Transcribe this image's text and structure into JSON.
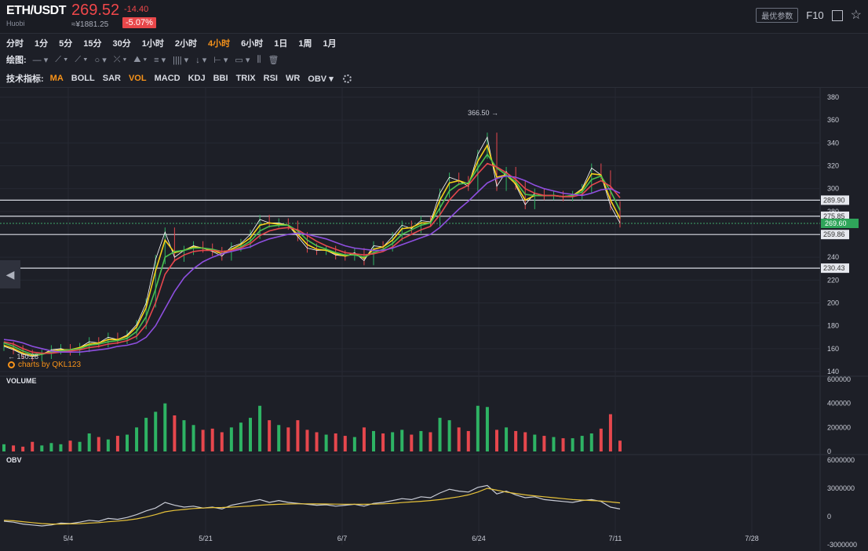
{
  "header": {
    "pair": "ETH/USDT",
    "exchange": "Huobi",
    "price": "269.52",
    "change": "-14.40",
    "cny": "≈¥1881.25",
    "change_pct": "-5.07%",
    "best_params": "最优参数",
    "f10": "F10",
    "colors": {
      "down": "#f0474a",
      "accent": "#f7931a"
    }
  },
  "timeframes": [
    "分时",
    "1分",
    "5分",
    "15分",
    "30分",
    "1小时",
    "2小时",
    "4小时",
    "6小时",
    "1日",
    "1周",
    "1月"
  ],
  "active_timeframe": "4小时",
  "drawing": {
    "label": "绘图:",
    "tools": [
      "— ▾",
      "⟋ ▾",
      "⟋ ▾",
      "○ ▾",
      "⤫ ▾",
      "⛰ ▾",
      "≡ ▾",
      "|||| ▾",
      "↓ ▾",
      "⊢ ▾",
      "▭ ▾",
      "⫼",
      "🗑"
    ]
  },
  "indicators": {
    "label": "技术指标:",
    "items": [
      "MA",
      "BOLL",
      "SAR",
      "VOL",
      "MACD",
      "KDJ",
      "BBI",
      "TRIX",
      "RSI",
      "WR",
      "OBV ▾"
    ],
    "active": [
      "MA",
      "VOL"
    ]
  },
  "watermark": "charts by QKL123",
  "chart_data": [
    {
      "type": "line",
      "title": "",
      "x_ticks": [
        "5/4",
        "5/21",
        "6/7",
        "6/24",
        "7/11",
        "7/28"
      ],
      "y_ticks": [
        "140",
        "160",
        "180",
        "200",
        "220",
        "240",
        "260",
        "280",
        "300",
        "320",
        "340",
        "360",
        "380"
      ],
      "ylim": [
        140,
        380
      ],
      "annotations": {
        "max": "366.50 →",
        "min": "← 150.28"
      },
      "horizontal_levels": [
        {
          "value": 289.9,
          "label": "289.90"
        },
        {
          "value": 275.85,
          "label": "275.85"
        },
        {
          "value": 259.86,
          "label": "259.86"
        },
        {
          "value": 230.43,
          "label": "230.43"
        }
      ],
      "last_price": {
        "value": 269.6,
        "label": "269.60"
      },
      "series": [
        {
          "color": "#ffffff",
          "values": [
            162,
            159,
            155,
            153,
            155,
            159,
            160,
            158,
            161,
            166,
            165,
            170,
            168,
            172,
            181,
            200,
            238,
            262,
            240,
            246,
            250,
            248,
            245,
            241,
            249,
            252,
            260,
            273,
            270,
            270,
            268,
            258,
            248,
            246,
            246,
            242,
            241,
            244,
            237,
            250,
            249,
            258,
            268,
            265,
            272,
            271,
            296,
            310,
            307,
            302,
            330,
            345,
            302,
            315,
            303,
            286,
            296,
            294,
            294,
            293,
            294,
            300,
            318,
            312,
            285,
            270
          ]
        },
        {
          "color": "#f7d21a",
          "values": [
            163,
            160,
            156,
            154,
            155,
            158,
            159,
            159,
            161,
            164,
            165,
            168,
            168,
            171,
            179,
            196,
            228,
            255,
            244,
            246,
            249,
            248,
            246,
            243,
            247,
            251,
            257,
            268,
            270,
            269,
            268,
            260,
            251,
            247,
            246,
            243,
            241,
            243,
            239,
            247,
            249,
            255,
            265,
            266,
            270,
            270,
            290,
            305,
            307,
            304,
            324,
            338,
            310,
            312,
            304,
            290,
            294,
            294,
            294,
            293,
            294,
            299,
            313,
            312,
            290,
            274
          ]
        },
        {
          "color": "#4bc24f",
          "values": [
            165,
            162,
            158,
            155,
            155,
            157,
            158,
            159,
            160,
            163,
            164,
            166,
            167,
            169,
            175,
            188,
            212,
            240,
            245,
            246,
            248,
            248,
            247,
            245,
            246,
            249,
            254,
            263,
            267,
            268,
            268,
            263,
            255,
            250,
            247,
            244,
            242,
            242,
            240,
            244,
            247,
            252,
            260,
            264,
            268,
            270,
            283,
            298,
            304,
            305,
            318,
            330,
            318,
            312,
            306,
            295,
            294,
            294,
            294,
            293,
            294,
            297,
            308,
            311,
            298,
            281
          ]
        },
        {
          "color": "#e6474d",
          "values": [
            166,
            164,
            160,
            157,
            156,
            156,
            157,
            158,
            159,
            161,
            162,
            164,
            165,
            167,
            171,
            181,
            200,
            225,
            237,
            242,
            245,
            246,
            246,
            245,
            246,
            248,
            252,
            259,
            263,
            265,
            266,
            264,
            259,
            254,
            250,
            247,
            244,
            243,
            242,
            243,
            245,
            249,
            256,
            260,
            264,
            267,
            277,
            290,
            299,
            303,
            313,
            322,
            319,
            314,
            308,
            300,
            296,
            294,
            294,
            293,
            293,
            295,
            303,
            307,
            302,
            292
          ]
        },
        {
          "color": "#8e4fe0",
          "values": [
            168,
            167,
            165,
            162,
            160,
            158,
            157,
            157,
            157,
            158,
            159,
            160,
            162,
            163,
            165,
            170,
            180,
            195,
            210,
            222,
            230,
            236,
            240,
            243,
            245,
            247,
            249,
            253,
            256,
            258,
            260,
            261,
            260,
            258,
            256,
            253,
            250,
            248,
            247,
            246,
            246,
            248,
            251,
            254,
            257,
            260,
            266,
            274,
            282,
            289,
            297,
            305,
            309,
            311,
            310,
            307,
            303,
            300,
            298,
            296,
            295,
            294,
            296,
            299,
            300,
            296
          ]
        }
      ]
    },
    {
      "type": "bar",
      "title": "VOLUME",
      "y_ticks": [
        "0",
        "200000",
        "400000",
        "600000"
      ],
      "ylim": [
        0,
        600000
      ],
      "values": [
        60000,
        50000,
        40000,
        80000,
        50000,
        70000,
        60000,
        90000,
        80000,
        150000,
        120000,
        100000,
        130000,
        140000,
        200000,
        280000,
        330000,
        400000,
        300000,
        260000,
        220000,
        180000,
        190000,
        160000,
        200000,
        240000,
        280000,
        380000,
        260000,
        220000,
        200000,
        260000,
        180000,
        160000,
        140000,
        150000,
        130000,
        120000,
        200000,
        170000,
        150000,
        160000,
        180000,
        140000,
        170000,
        160000,
        280000,
        260000,
        200000,
        170000,
        380000,
        370000,
        180000,
        200000,
        170000,
        160000,
        140000,
        130000,
        120000,
        110000,
        110000,
        130000,
        150000,
        190000,
        310000,
        90000
      ]
    },
    {
      "type": "line",
      "title": "OBV",
      "y_ticks": [
        "-3000000",
        "0",
        "3000000",
        "6000000"
      ],
      "ylim": [
        -3000000,
        6000000
      ],
      "series": [
        {
          "color": "#c9ccd6",
          "values": [
            -500000,
            -600000,
            -800000,
            -900000,
            -1000000,
            -900000,
            -700000,
            -750000,
            -600000,
            -400000,
            -500000,
            -200000,
            -300000,
            -100000,
            200000,
            600000,
            900000,
            1500000,
            1200000,
            1000000,
            1100000,
            900000,
            1000000,
            800000,
            1200000,
            1400000,
            1600000,
            1800000,
            1500000,
            1700000,
            1500000,
            1400000,
            1300000,
            1200000,
            1250000,
            1100000,
            1200000,
            1300000,
            1100000,
            1400000,
            1500000,
            1700000,
            1900000,
            1800000,
            2100000,
            2000000,
            2500000,
            2900000,
            2700000,
            2600000,
            3100000,
            3300000,
            2400000,
            2700000,
            2300000,
            2000000,
            2100000,
            1800000,
            1700000,
            1600000,
            1500000,
            1700000,
            1800000,
            1600000,
            1000000,
            800000
          ]
        },
        {
          "color": "#e8c33a",
          "values": [
            -400000,
            -450000,
            -550000,
            -650000,
            -750000,
            -800000,
            -800000,
            -780000,
            -760000,
            -700000,
            -650000,
            -560000,
            -480000,
            -380000,
            -250000,
            -50000,
            200000,
            500000,
            650000,
            750000,
            850000,
            900000,
            950000,
            960000,
            1000000,
            1060000,
            1120000,
            1200000,
            1260000,
            1300000,
            1330000,
            1350000,
            1350000,
            1340000,
            1330000,
            1320000,
            1310000,
            1310000,
            1300000,
            1320000,
            1350000,
            1400000,
            1480000,
            1550000,
            1620000,
            1700000,
            1800000,
            1950000,
            2100000,
            2300000,
            2600000,
            3000000,
            2800000,
            2600000,
            2450000,
            2300000,
            2200000,
            2100000,
            2000000,
            1900000,
            1800000,
            1750000,
            1700000,
            1650000,
            1550000,
            1450000
          ]
        }
      ]
    }
  ]
}
